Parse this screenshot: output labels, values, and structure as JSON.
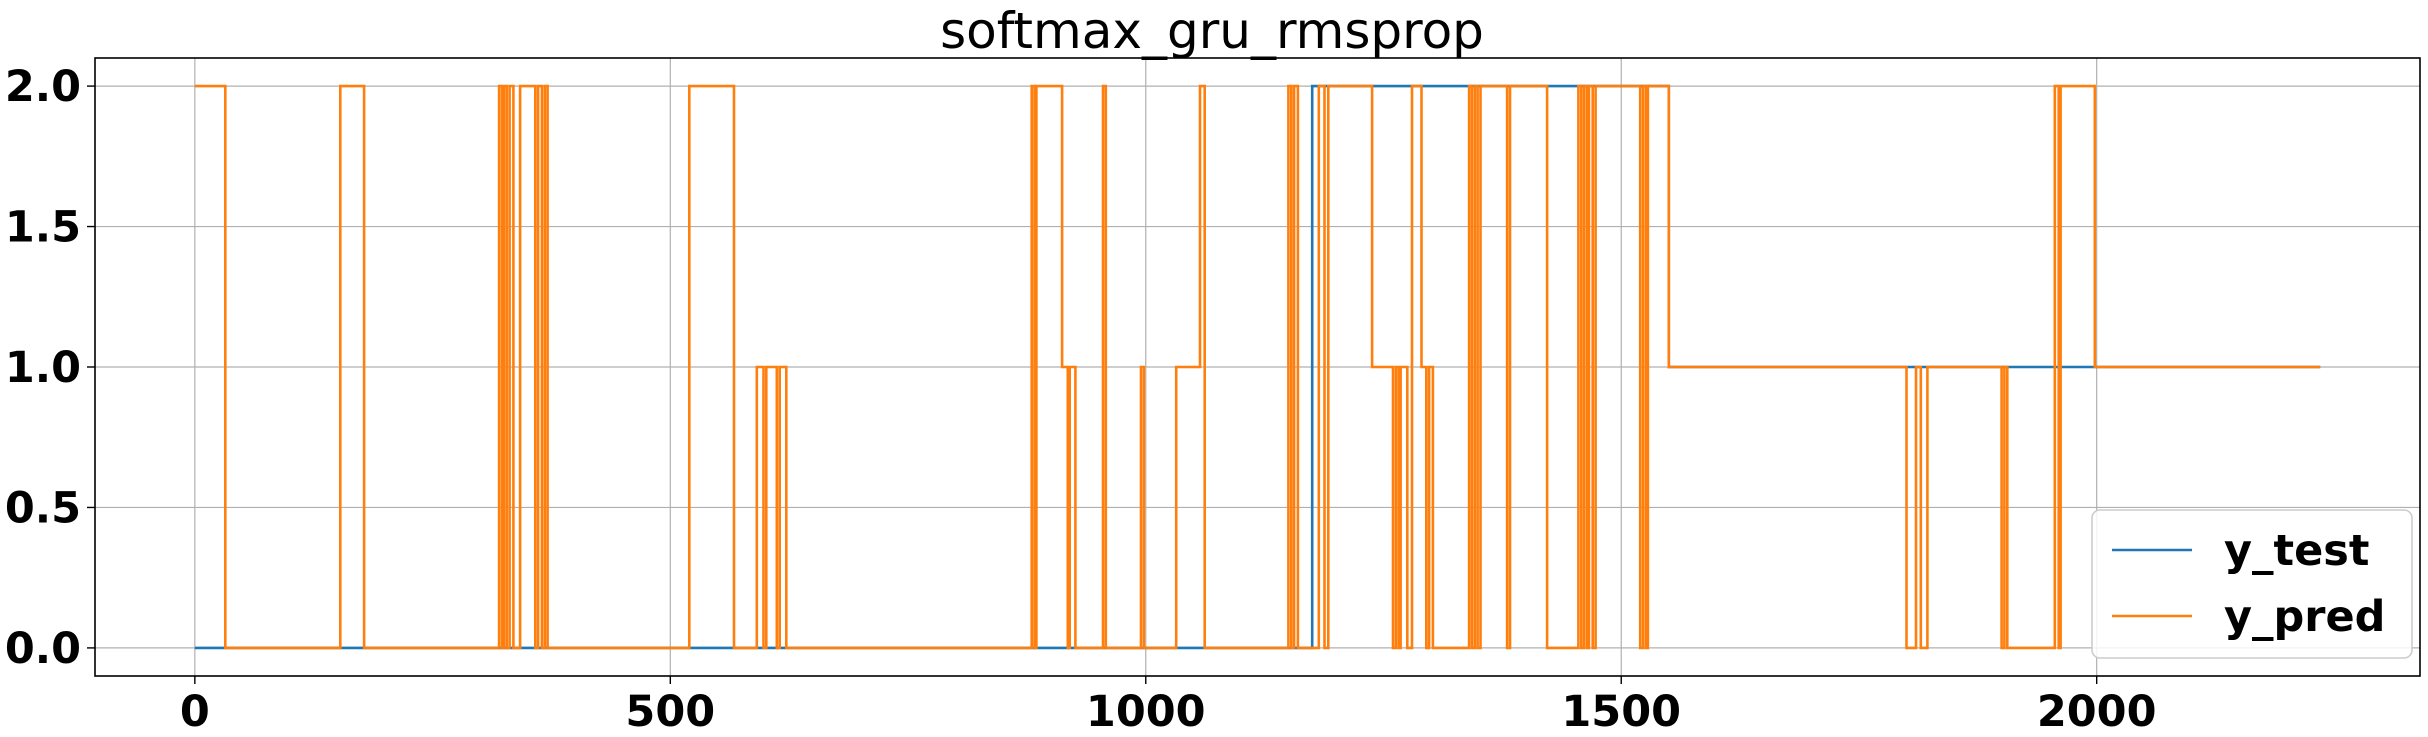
{
  "chart_data": {
    "type": "line",
    "title": "softmax_gru_rmsprop",
    "xlabel": "",
    "ylabel": "",
    "xlim": [
      -105,
      2340
    ],
    "ylim": [
      -0.1,
      2.1
    ],
    "grid": true,
    "legend_position": "lower-right",
    "x_ticks": [
      0,
      500,
      1000,
      1500,
      2000
    ],
    "x_tick_labels": [
      "0",
      "500",
      "1000",
      "1500",
      "2000"
    ],
    "y_ticks": [
      0.0,
      0.5,
      1.0,
      1.5,
      2.0
    ],
    "y_tick_labels": [
      "0.0",
      "0.5",
      "1.0",
      "1.5",
      "2.0"
    ],
    "series": [
      {
        "name": "y_test",
        "color": "#1f77b4",
        "steps": [
          [
            0,
            0
          ],
          [
            1175,
            2
          ],
          [
            1550,
            1
          ],
          [
            2235,
            1
          ]
        ]
      },
      {
        "name": "y_pred",
        "color": "#ff7f0e",
        "steps": [
          [
            0,
            2
          ],
          [
            32,
            0
          ],
          [
            153,
            2
          ],
          [
            178,
            0
          ],
          [
            320,
            2
          ],
          [
            323,
            0
          ],
          [
            325,
            2
          ],
          [
            328,
            0
          ],
          [
            331,
            2
          ],
          [
            335,
            0
          ],
          [
            342,
            2
          ],
          [
            358,
            0
          ],
          [
            361,
            2
          ],
          [
            365,
            0
          ],
          [
            368,
            2
          ],
          [
            371,
            0
          ],
          [
            520,
            2
          ],
          [
            567,
            0
          ],
          [
            591,
            1
          ],
          [
            598,
            0
          ],
          [
            601,
            1
          ],
          [
            612,
            0
          ],
          [
            615,
            1
          ],
          [
            622,
            0
          ],
          [
            880,
            2
          ],
          [
            883,
            0
          ],
          [
            885,
            2
          ],
          [
            912,
            1
          ],
          [
            918,
            0
          ],
          [
            920,
            1
          ],
          [
            926,
            0
          ],
          [
            955,
            2
          ],
          [
            958,
            0
          ],
          [
            995,
            1
          ],
          [
            998,
            0
          ],
          [
            1032,
            1
          ],
          [
            1057,
            2
          ],
          [
            1062,
            0
          ],
          [
            1150,
            2
          ],
          [
            1153,
            0
          ],
          [
            1156,
            2
          ],
          [
            1160,
            0
          ],
          [
            1182,
            2
          ],
          [
            1188,
            0
          ],
          [
            1192,
            2
          ],
          [
            1238,
            1
          ],
          [
            1260,
            0
          ],
          [
            1263,
            1
          ],
          [
            1266,
            0
          ],
          [
            1268,
            1
          ],
          [
            1275,
            0
          ],
          [
            1280,
            2
          ],
          [
            1290,
            1
          ],
          [
            1295,
            0
          ],
          [
            1298,
            1
          ],
          [
            1302,
            0
          ],
          [
            1340,
            2
          ],
          [
            1343,
            0
          ],
          [
            1346,
            2
          ],
          [
            1349,
            0
          ],
          [
            1352,
            2
          ],
          [
            1380,
            0
          ],
          [
            1383,
            2
          ],
          [
            1422,
            0
          ],
          [
            1455,
            2
          ],
          [
            1458,
            0
          ],
          [
            1461,
            2
          ],
          [
            1464,
            0
          ],
          [
            1466,
            2
          ],
          [
            1470,
            0
          ],
          [
            1473,
            2
          ],
          [
            1520,
            0
          ],
          [
            1523,
            2
          ],
          [
            1526,
            0
          ],
          [
            1528,
            2
          ],
          [
            1550,
            1
          ],
          [
            1800,
            0
          ],
          [
            1810,
            1
          ],
          [
            1815,
            0
          ],
          [
            1822,
            1
          ],
          [
            1900,
            0
          ],
          [
            1903,
            1
          ],
          [
            1906,
            0
          ],
          [
            1956,
            2
          ],
          [
            1960,
            0
          ],
          [
            1962,
            2
          ],
          [
            1998,
            1
          ],
          [
            2235,
            1
          ]
        ]
      }
    ]
  }
}
